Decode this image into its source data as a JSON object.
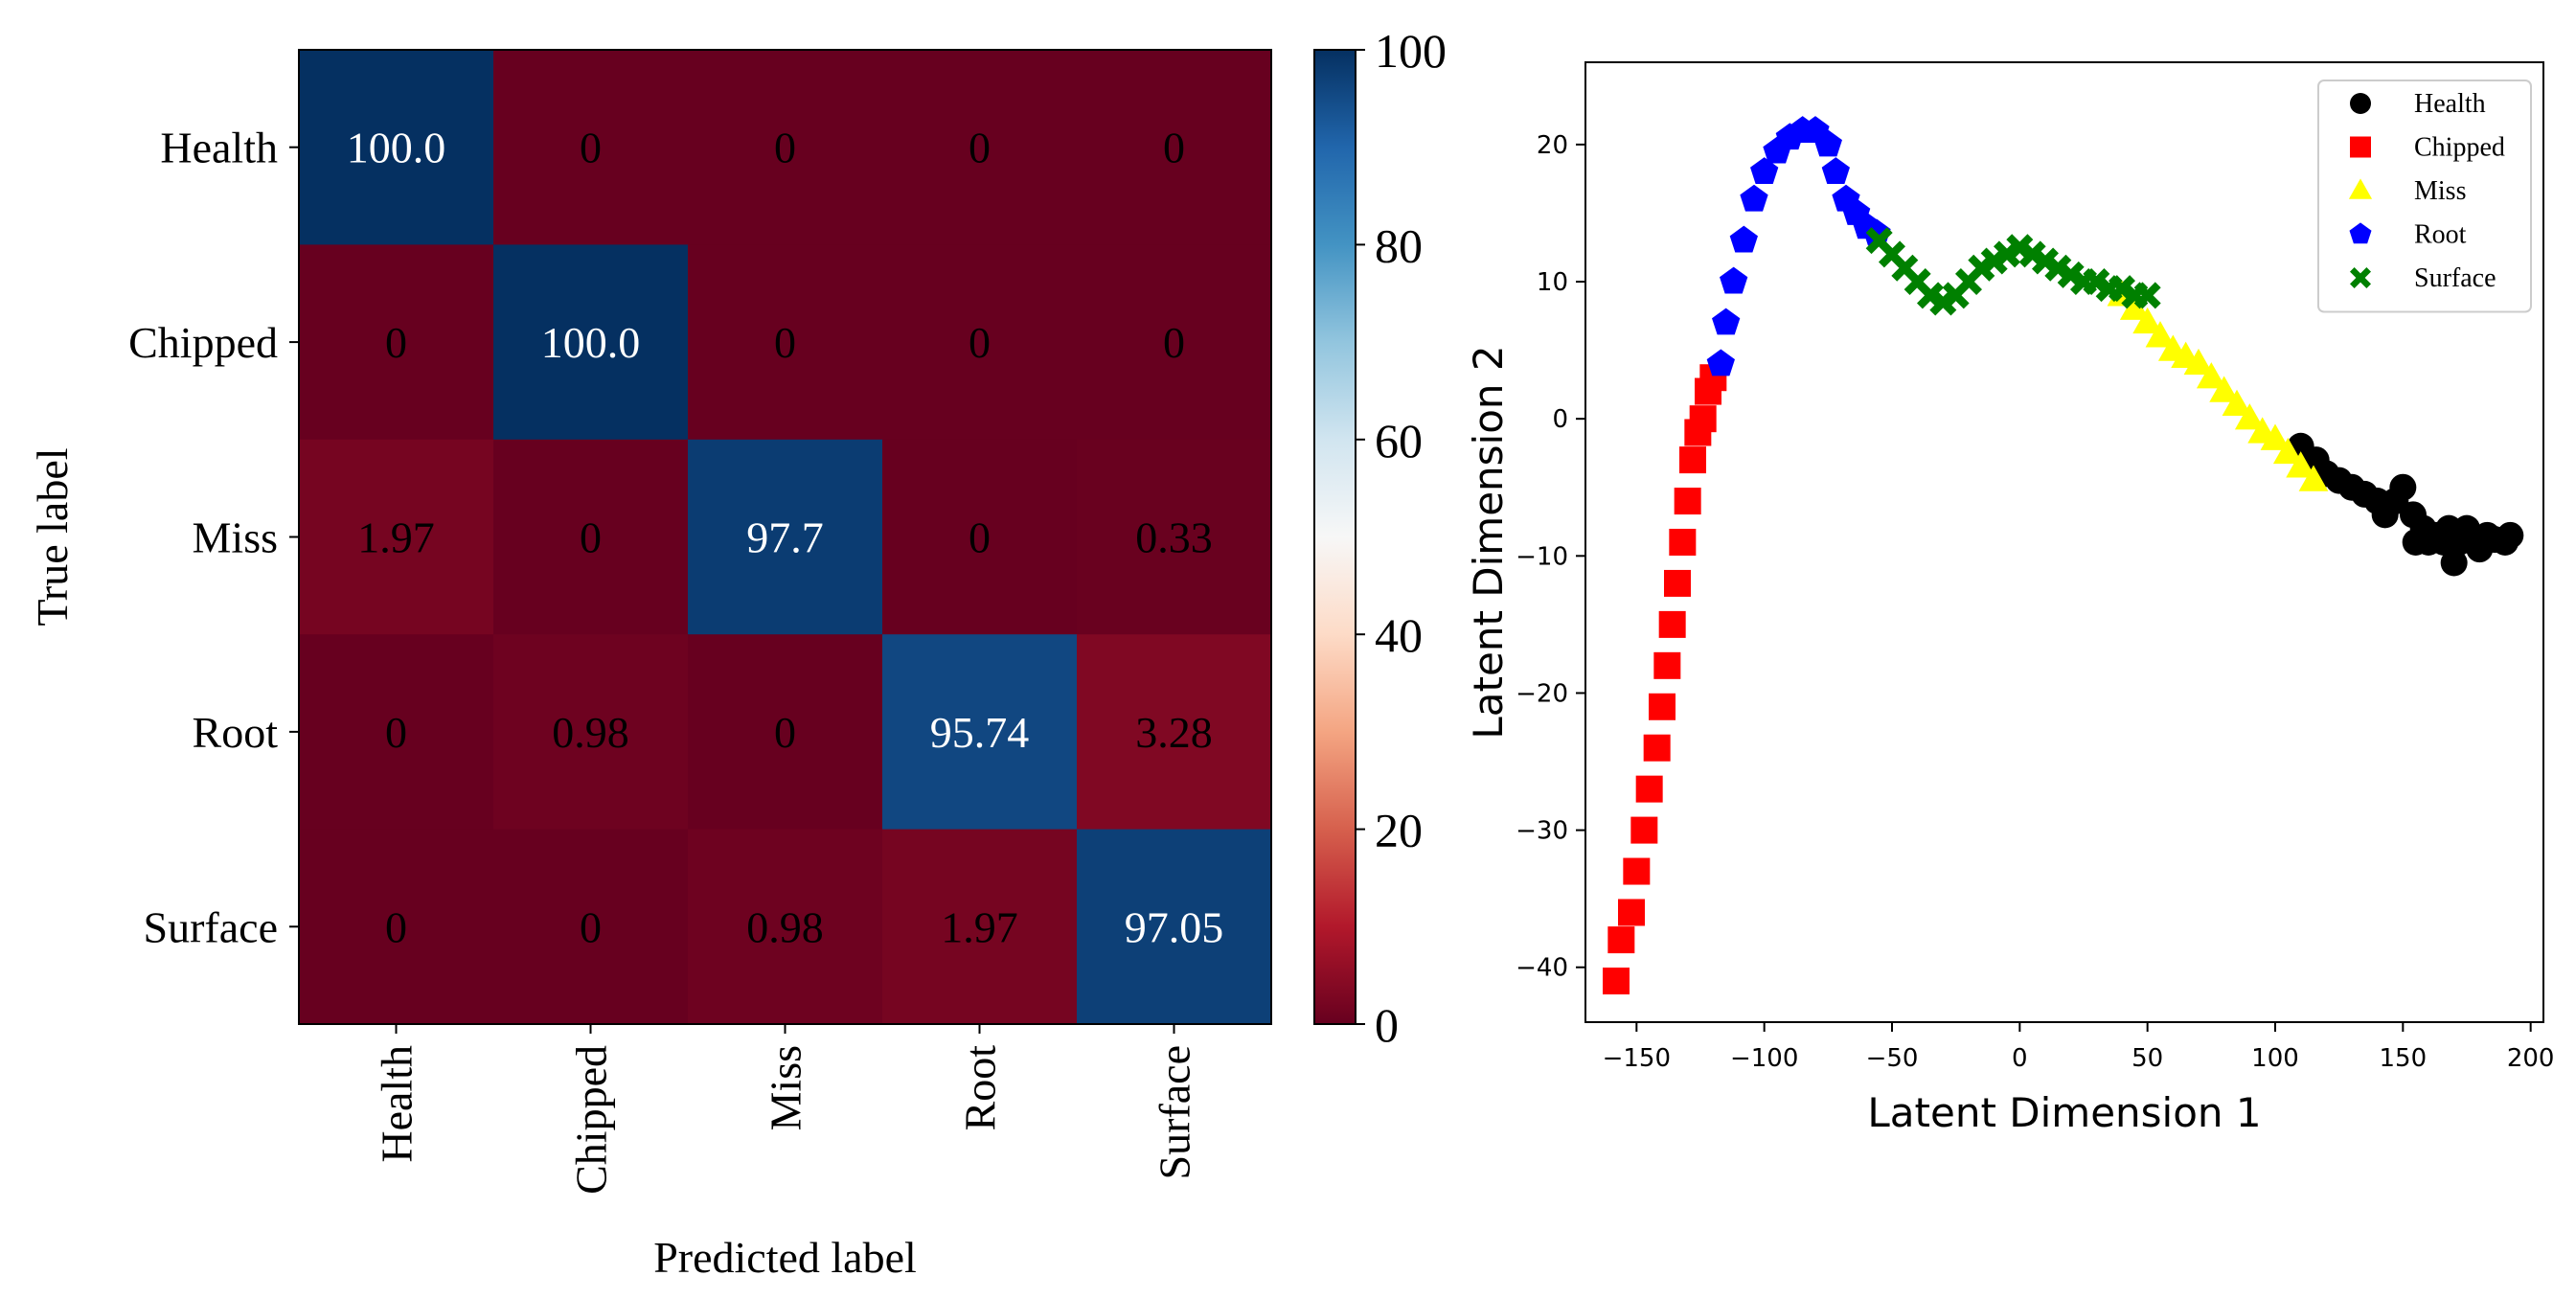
{
  "chart_data": [
    {
      "type": "heatmap",
      "ylabel": "True label",
      "xlabel": "Predicted label",
      "row_labels": [
        "Health",
        "Chipped",
        "Miss",
        "Root",
        "Surface"
      ],
      "col_labels": [
        "Health",
        "Chipped",
        "Miss",
        "Root",
        "Surface"
      ],
      "values": [
        [
          100.0,
          0,
          0,
          0,
          0
        ],
        [
          0,
          100.0,
          0,
          0,
          0
        ],
        [
          1.97,
          0,
          97.7,
          0,
          0.33
        ],
        [
          0,
          0.98,
          0,
          95.74,
          3.28
        ],
        [
          0,
          0,
          0.98,
          1.97,
          97.05
        ]
      ],
      "cell_text": [
        [
          "100.0",
          "0",
          "0",
          "0",
          "0"
        ],
        [
          "0",
          "100.0",
          "0",
          "0",
          "0"
        ],
        [
          "1.97",
          "0",
          "97.7",
          "0",
          "0.33"
        ],
        [
          "0",
          "0.98",
          "0",
          "95.74",
          "3.28"
        ],
        [
          "0",
          "0",
          "0.98",
          "1.97",
          "97.05"
        ]
      ],
      "colorbar": {
        "range": [
          0,
          100
        ],
        "ticks": [
          "0",
          "20",
          "40",
          "60",
          "80",
          "100"
        ],
        "colormap": "RdBu"
      }
    },
    {
      "type": "scatter",
      "xlabel": "Latent Dimension 1",
      "ylabel": "Latent Dimension 2",
      "xlim": [
        -170,
        205
      ],
      "ylim": [
        -44,
        26
      ],
      "xticks": [
        "−150",
        "−100",
        "−50",
        "0",
        "50",
        "100",
        "150",
        "200"
      ],
      "yticks": [
        "−40",
        "−30",
        "−20",
        "−10",
        "0",
        "10",
        "20"
      ],
      "legend_position": "top-right",
      "series": [
        {
          "name": "Health",
          "color": "#000000",
          "marker": "circle",
          "points": [
            [
              110,
              -2
            ],
            [
              116,
              -3
            ],
            [
              120,
              -4
            ],
            [
              125,
              -4.5
            ],
            [
              130,
              -5
            ],
            [
              135,
              -5.5
            ],
            [
              140,
              -6
            ],
            [
              143,
              -7
            ],
            [
              147,
              -6
            ],
            [
              150,
              -5
            ],
            [
              154,
              -7
            ],
            [
              155,
              -9
            ],
            [
              158,
              -8
            ],
            [
              160,
              -9
            ],
            [
              163,
              -8.5
            ],
            [
              166,
              -9
            ],
            [
              168,
              -8
            ],
            [
              170,
              -10.5
            ],
            [
              172,
              -9
            ],
            [
              175,
              -8
            ],
            [
              178,
              -9
            ],
            [
              180,
              -9.5
            ],
            [
              183,
              -8.5
            ],
            [
              186,
              -8.8
            ],
            [
              190,
              -9
            ],
            [
              192,
              -8.5
            ]
          ]
        },
        {
          "name": "Chipped",
          "color": "#ff0000",
          "marker": "square",
          "points": [
            [
              -158,
              -41
            ],
            [
              -156,
              -38
            ],
            [
              -152,
              -36
            ],
            [
              -150,
              -33
            ],
            [
              -147,
              -30
            ],
            [
              -145,
              -27
            ],
            [
              -142,
              -24
            ],
            [
              -140,
              -21
            ],
            [
              -138,
              -18
            ],
            [
              -136,
              -15
            ],
            [
              -134,
              -12
            ],
            [
              -132,
              -9
            ],
            [
              -130,
              -6
            ],
            [
              -128,
              -3
            ],
            [
              -126,
              -1
            ],
            [
              -124,
              0
            ],
            [
              -122,
              2
            ],
            [
              -120,
              3
            ]
          ]
        },
        {
          "name": "Miss",
          "color": "#ffff00",
          "marker": "triangle",
          "points": [
            [
              40,
              9
            ],
            [
              45,
              8
            ],
            [
              50,
              7
            ],
            [
              55,
              6
            ],
            [
              60,
              5
            ],
            [
              65,
              4.5
            ],
            [
              70,
              4
            ],
            [
              75,
              3
            ],
            [
              80,
              2
            ],
            [
              85,
              1
            ],
            [
              90,
              0
            ],
            [
              95,
              -1
            ],
            [
              100,
              -1.5
            ],
            [
              105,
              -2.5
            ],
            [
              110,
              -3.5
            ],
            [
              115,
              -4.5
            ]
          ]
        },
        {
          "name": "Root",
          "color": "#0000ff",
          "marker": "pentagon",
          "points": [
            [
              -117,
              4
            ],
            [
              -115,
              7
            ],
            [
              -112,
              10
            ],
            [
              -108,
              13
            ],
            [
              -104,
              16
            ],
            [
              -100,
              18
            ],
            [
              -95,
              19.5
            ],
            [
              -90,
              20.5
            ],
            [
              -85,
              21
            ],
            [
              -80,
              21
            ],
            [
              -75,
              20
            ],
            [
              -72,
              18
            ],
            [
              -68,
              16
            ],
            [
              -64,
              15
            ],
            [
              -60,
              14
            ],
            [
              -56,
              13.5
            ]
          ]
        },
        {
          "name": "Surface",
          "color": "#008000",
          "marker": "x",
          "points": [
            [
              -55,
              13
            ],
            [
              -50,
              12
            ],
            [
              -45,
              11
            ],
            [
              -40,
              10
            ],
            [
              -35,
              9
            ],
            [
              -30,
              8.5
            ],
            [
              -25,
              9
            ],
            [
              -20,
              10
            ],
            [
              -15,
              11
            ],
            [
              -10,
              11.5
            ],
            [
              -5,
              12
            ],
            [
              0,
              12.5
            ],
            [
              5,
              12
            ],
            [
              10,
              11.5
            ],
            [
              15,
              11
            ],
            [
              20,
              10.5
            ],
            [
              25,
              10
            ],
            [
              30,
              10
            ],
            [
              35,
              9.5
            ],
            [
              40,
              9.5
            ],
            [
              45,
              9
            ],
            [
              50,
              9
            ]
          ]
        }
      ]
    }
  ]
}
